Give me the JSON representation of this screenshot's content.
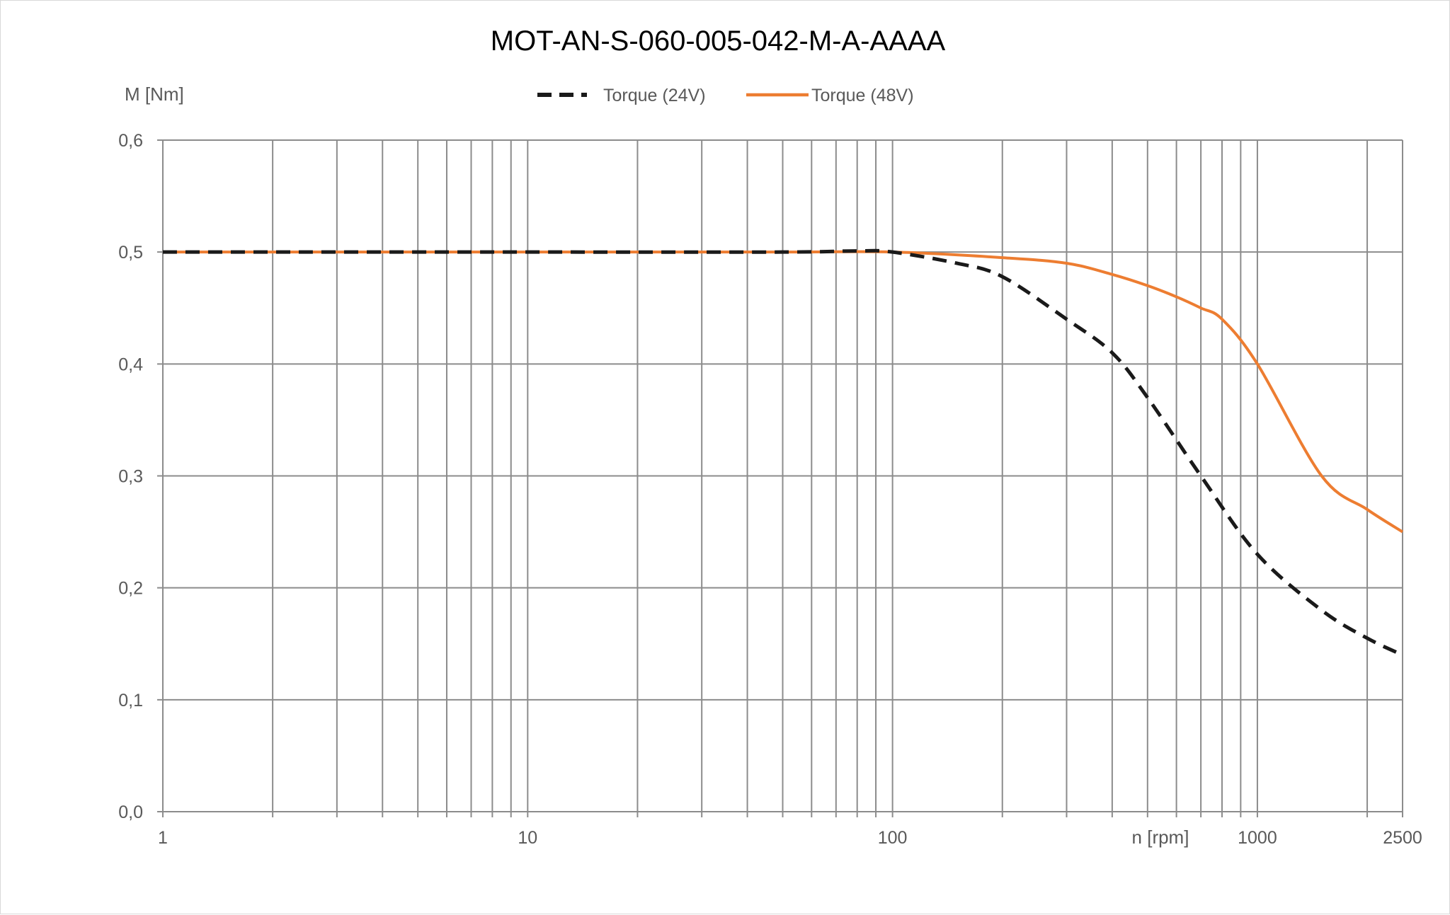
{
  "chart_data": {
    "type": "line",
    "title": "MOT-AN-S-060-005-042-M-A-AAAA",
    "ylabel": "M [Nm]",
    "xlabel": "n [rpm]",
    "x_scale": "log",
    "xlim": [
      1,
      2500
    ],
    "ylim": [
      0,
      0.6
    ],
    "grid": true,
    "legend_position": "top-center",
    "x_tick_labels": [
      "1",
      "10",
      "100",
      "1000",
      "2500"
    ],
    "y_tick_labels": [
      "0,0",
      "0,1",
      "0,2",
      "0,3",
      "0,4",
      "0,5",
      "0,6"
    ],
    "y_ticks": [
      0,
      0.1,
      0.2,
      0.3,
      0.4,
      0.5,
      0.6
    ],
    "series": [
      {
        "name": "Torque (24V)",
        "color": "#1a1a1a",
        "style": "dashed",
        "x": [
          1,
          10,
          50,
          80,
          100,
          150,
          200,
          300,
          400,
          500,
          700,
          1000,
          1500,
          2000,
          2500
        ],
        "y": [
          0.5,
          0.5,
          0.5,
          0.501,
          0.5,
          0.49,
          0.478,
          0.44,
          0.41,
          0.37,
          0.3,
          0.23,
          0.18,
          0.155,
          0.14
        ]
      },
      {
        "name": "Torque (48V)",
        "color": "#ed7d31",
        "style": "solid",
        "x": [
          1,
          10,
          50,
          100,
          200,
          300,
          400,
          500,
          600,
          700,
          800,
          1000,
          1500,
          2000,
          2500
        ],
        "y": [
          0.5,
          0.5,
          0.5,
          0.5,
          0.495,
          0.49,
          0.48,
          0.47,
          0.46,
          0.45,
          0.44,
          0.4,
          0.3,
          0.27,
          0.25
        ]
      }
    ]
  }
}
